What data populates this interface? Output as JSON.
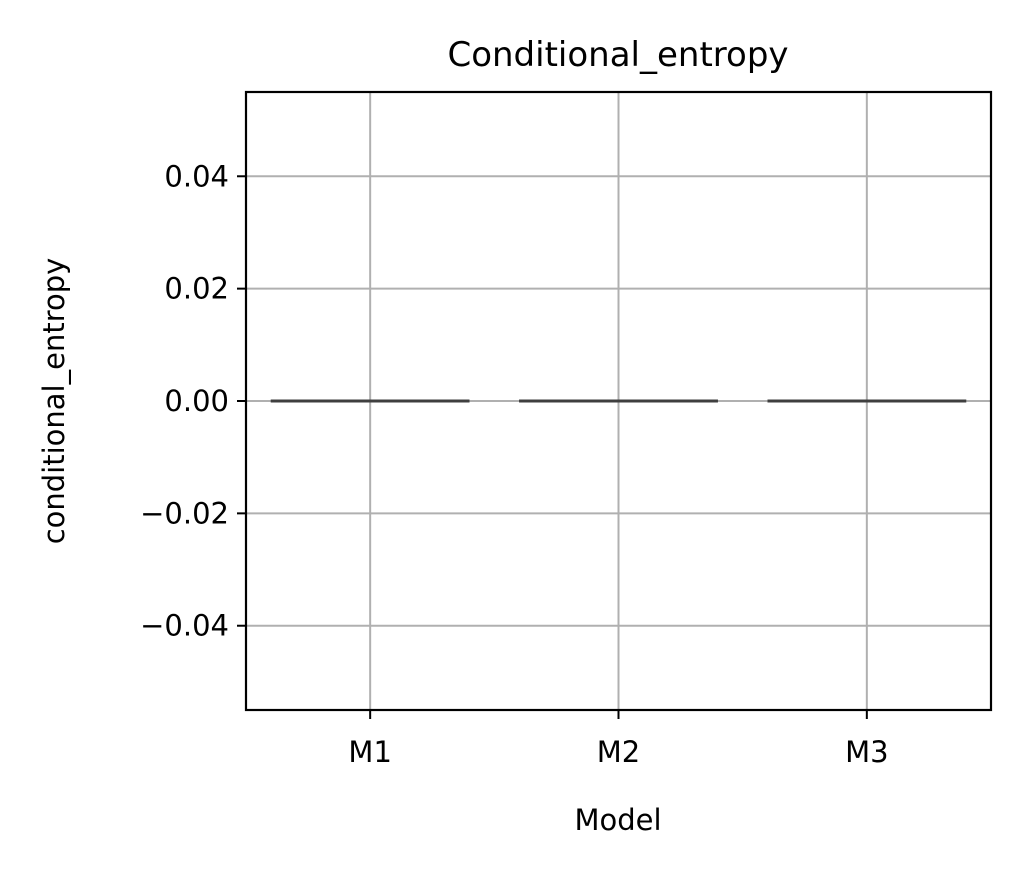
{
  "chart_data": {
    "type": "box",
    "title": "Conditional_entropy",
    "xlabel": "Model",
    "ylabel": "conditional_entropy",
    "categories": [
      "M1",
      "M2",
      "M3"
    ],
    "boxes": [
      {
        "category": "M1",
        "min": 0.0,
        "q1": 0.0,
        "median": 0.0,
        "q3": 0.0,
        "max": 0.0
      },
      {
        "category": "M2",
        "min": 0.0,
        "q1": 0.0,
        "median": 0.0,
        "q3": 0.0,
        "max": 0.0
      },
      {
        "category": "M3",
        "min": 0.0,
        "q1": 0.0,
        "median": 0.0,
        "q3": 0.0,
        "max": 0.0
      }
    ],
    "yticks": [
      -0.04,
      -0.02,
      0.0,
      0.02,
      0.04
    ],
    "ytick_labels": [
      "−0.04",
      "−0.02",
      "0.00",
      "0.02",
      "0.04"
    ],
    "ylim": [
      -0.055,
      0.055
    ],
    "grid": true,
    "box_color": "#3f3f3f",
    "grid_color": "#b0b0b0"
  }
}
